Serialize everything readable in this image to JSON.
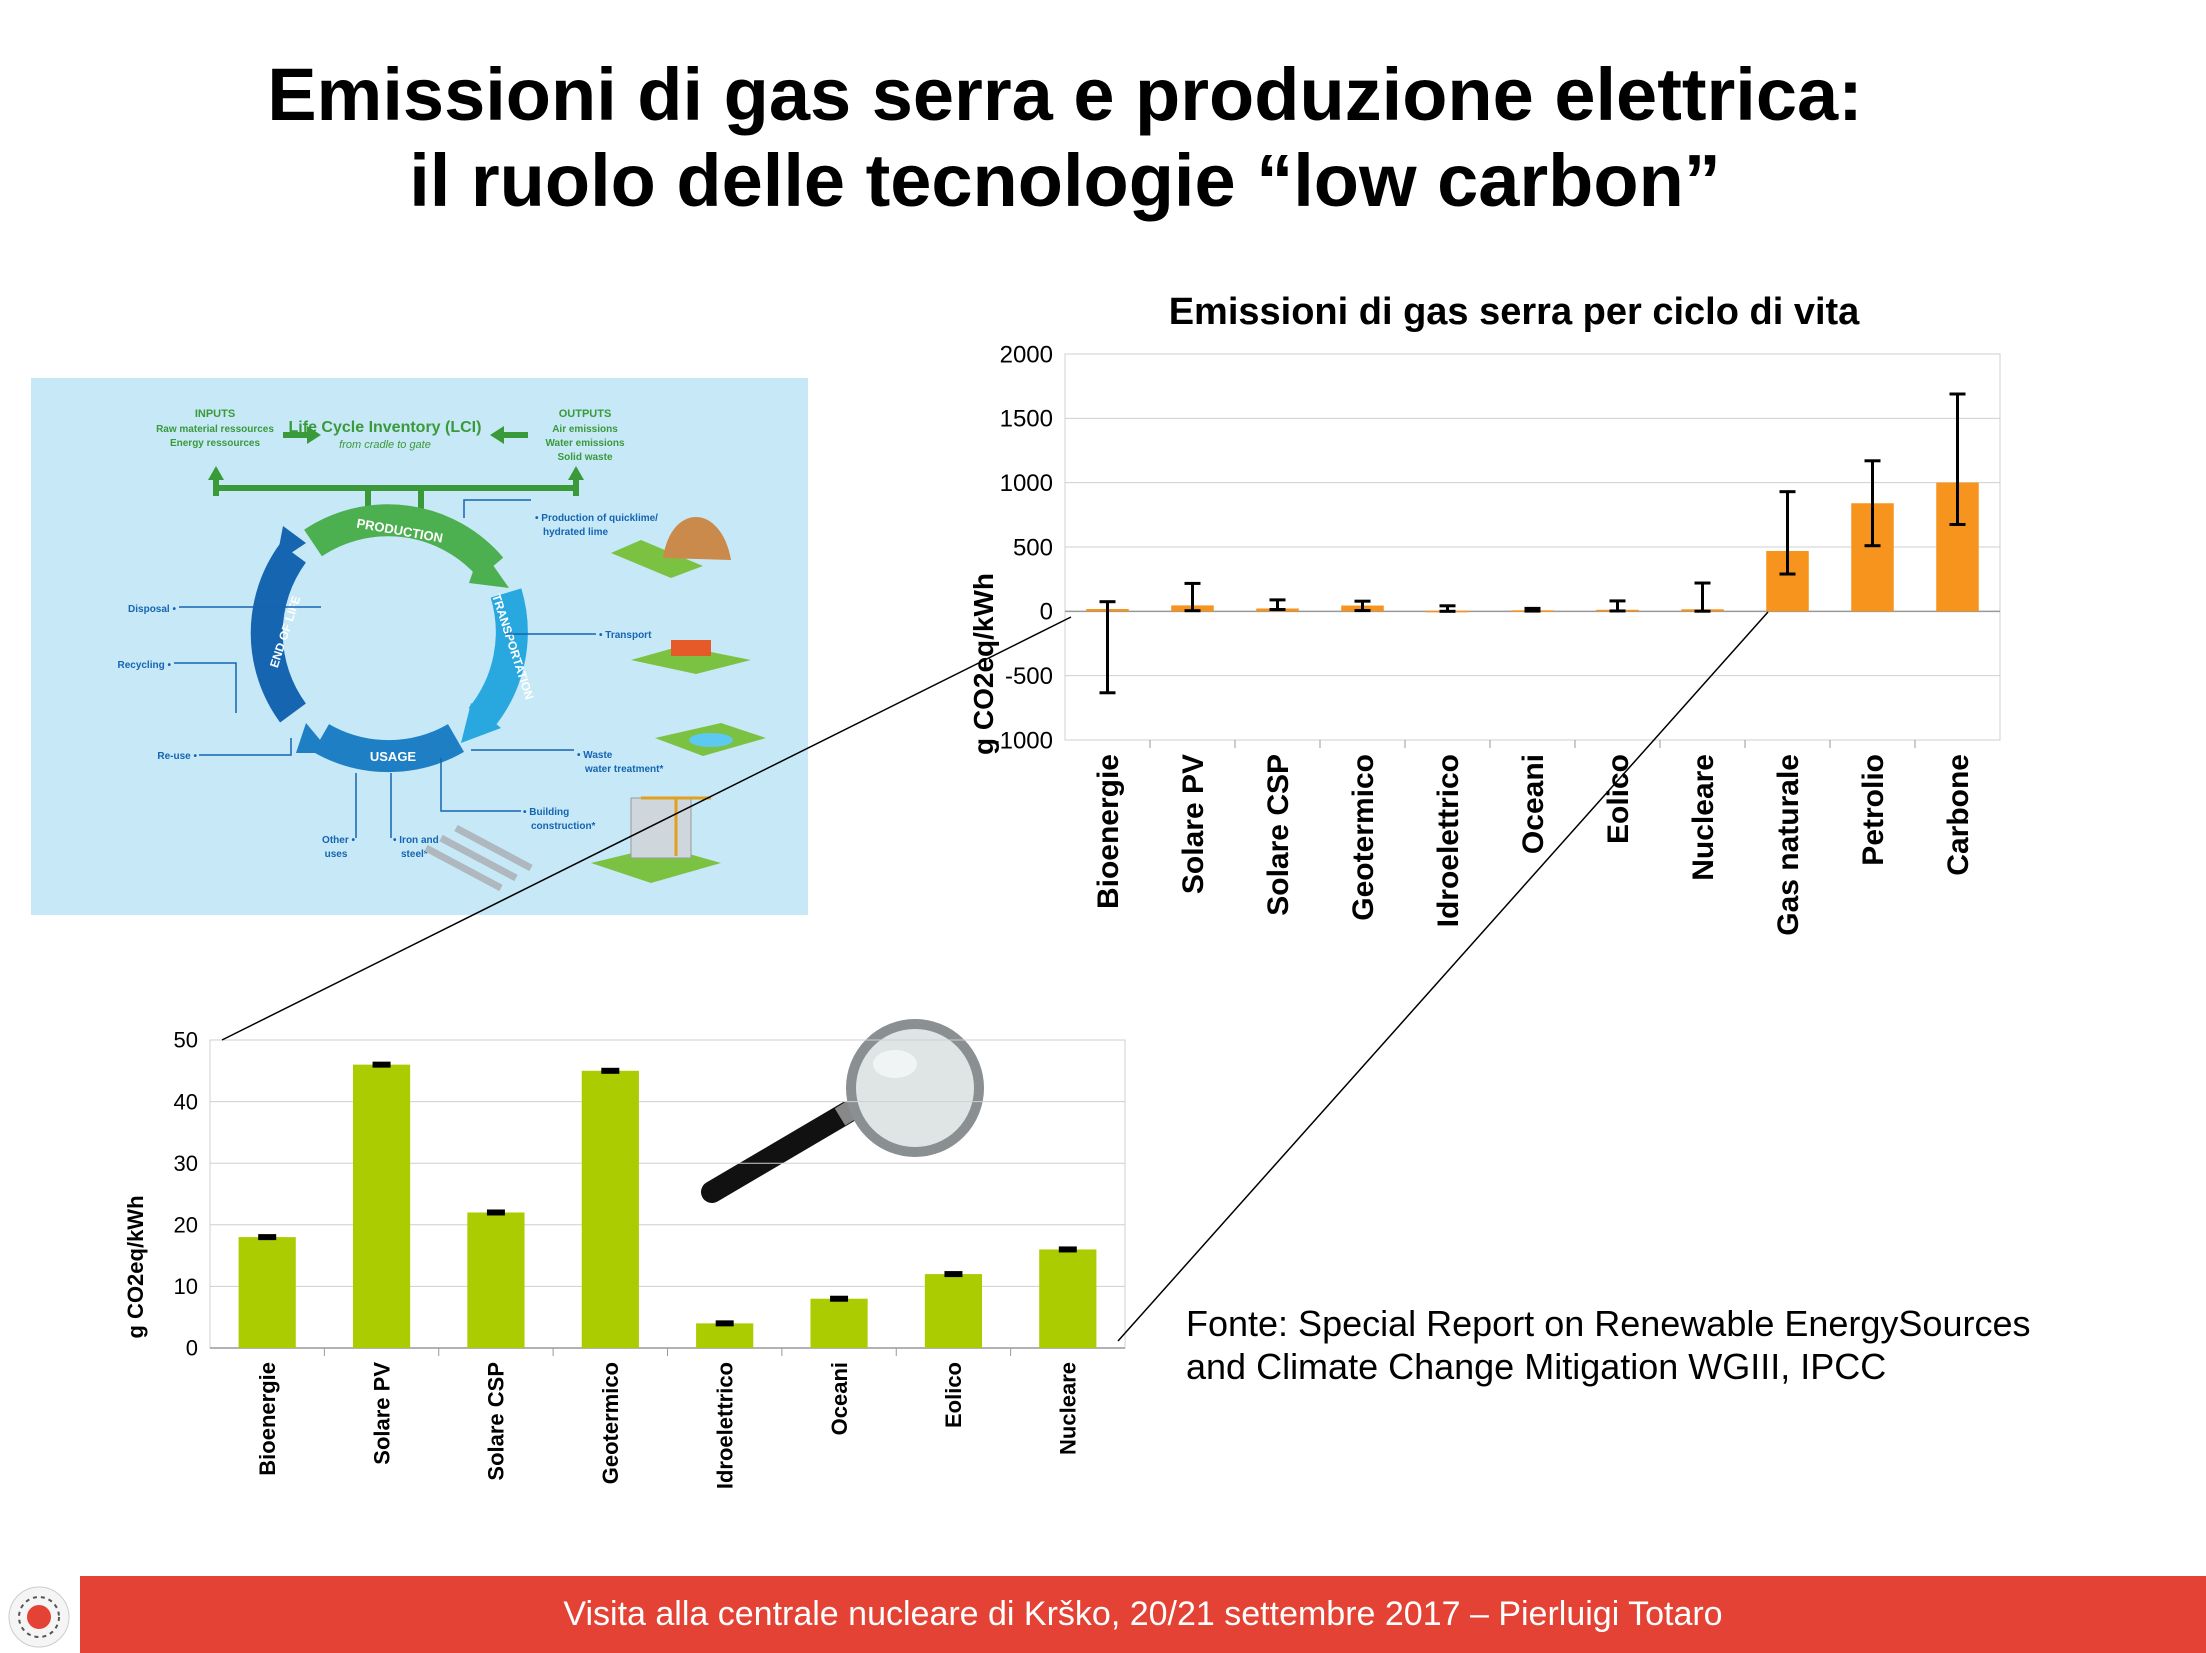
{
  "slide": {
    "title_line1": "Emissioni di gas serra e produzione elettrica:",
    "title_line2": "il ruolo delle tecnologie “low carbon”",
    "source_line1": "Fonte: Special Report on Renewable EnergySources",
    "source_line2": "and Climate Change Mitigation WGIII, IPCC",
    "footer": "Visita alla centrale nucleare di Krško, 20/21 settembre 2017 – Pierluigi Totaro"
  },
  "diagram": {
    "inputs_title": "INPUTS",
    "inputs_line1": "Raw material ressources",
    "inputs_line2": "Energy ressources",
    "lci_title": "Life Cycle Inventory (LCI)",
    "lci_sub": "from cradle to gate",
    "outputs_title": "OUTPUTS",
    "outputs_line1": "Air emissions",
    "outputs_line2": "Water emissions",
    "outputs_line3": "Solid waste",
    "arc_production": "PRODUCTION",
    "arc_transportation": "TRANSPORTATION",
    "arc_usage": "USAGE",
    "arc_end_of_life": "END OF LIFE",
    "prod_line1": "• Production of quicklime/",
    "prod_line2": "hydrated lime",
    "transport": "• Transport",
    "waste_line1": "• Waste",
    "waste_line2": "water treatment*",
    "building_line1": "• Building",
    "building_line2": "construction*",
    "disposal": "Disposal •",
    "recycling": "Recycling •",
    "reuse": "Re-use •",
    "other_line1": "Other •",
    "other_line2": "uses",
    "iron_line1": "• Iron and",
    "iron_line2": "steel*"
  },
  "colors": {
    "main_bar": "#f7941d",
    "small_bar": "#aacc00",
    "footer": "#e34234",
    "diagram_bg": "#c6e8f7"
  },
  "chart_data": [
    {
      "type": "bar",
      "title": "Emissioni di gas serra per ciclo di vita",
      "ylabel": "g CO2eq/kWh",
      "xlabel": "",
      "ylim": [
        -1000,
        2000
      ],
      "yticks": [
        -1000,
        -500,
        0,
        500,
        1000,
        1500,
        2000
      ],
      "grid": true,
      "categories": [
        "Bioenergie",
        "Solare PV",
        "Solare CSP",
        "Geotermico",
        "Idroelettrico",
        "Oceani",
        "Eolico",
        "Nucleare",
        "Gas naturale",
        "Petrolio",
        "Carbone"
      ],
      "values": [
        18,
        46,
        22,
        45,
        4,
        8,
        12,
        16,
        469,
        840,
        1001
      ],
      "error_low": [
        -633,
        5,
        14,
        6,
        0,
        2,
        3,
        1,
        290,
        510,
        675
      ],
      "error_high": [
        75,
        217,
        89,
        79,
        43,
        23,
        81,
        220,
        930,
        1170,
        1689
      ]
    },
    {
      "type": "bar",
      "title": "",
      "ylabel": "g CO2eq/kWh",
      "xlabel": "",
      "ylim": [
        0,
        50
      ],
      "yticks": [
        0,
        10,
        20,
        30,
        40,
        50
      ],
      "grid": true,
      "categories": [
        "Bioenergie",
        "Solare PV",
        "Solare CSP",
        "Geotermico",
        "Idroelettrico",
        "Oceani",
        "Eolico",
        "Nucleare"
      ],
      "values": [
        18,
        46,
        22,
        45,
        4,
        8,
        12,
        16
      ]
    }
  ]
}
